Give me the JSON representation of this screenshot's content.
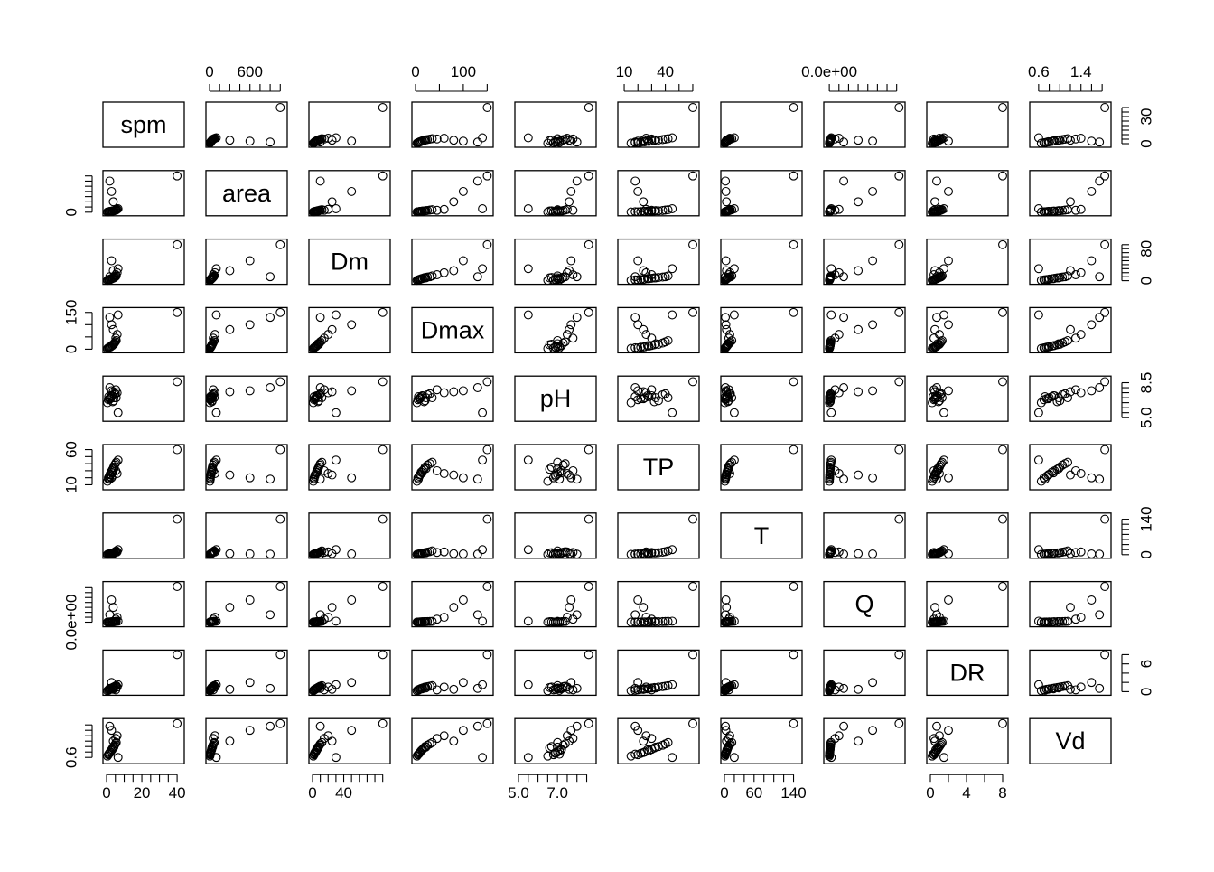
{
  "chart_data": {
    "type": "scatter",
    "kind": "pairs",
    "variables": [
      "spm",
      "area",
      "Dm",
      "Dmax",
      "pH",
      "TP",
      "T",
      "Q",
      "DR",
      "Vd"
    ],
    "axes": {
      "spm": {
        "range": [
          0,
          42
        ],
        "ticks": [
          0,
          5,
          10,
          15,
          20,
          25,
          30,
          35,
          40
        ],
        "labeled": {
          "top": [],
          "bottom": [
            "0",
            "20",
            "40"
          ],
          "left": [],
          "right": [
            "0",
            "30"
          ]
        },
        "label_values": {
          "bottom": [
            0,
            20,
            40
          ],
          "right": [
            0,
            30
          ]
        }
      },
      "area": {
        "range": [
          0,
          1100
        ],
        "ticks": [
          0,
          150,
          300,
          450,
          600,
          750,
          900,
          1050
        ],
        "labeled": {
          "top": [
            "0",
            "600"
          ],
          "left": [
            "0"
          ]
        },
        "label_values": {
          "top": [
            0,
            600
          ],
          "left": [
            0
          ]
        }
      },
      "Dm": {
        "range": [
          0,
          95
        ],
        "ticks": [
          0,
          10,
          20,
          30,
          40,
          50,
          60,
          70,
          80,
          90
        ],
        "labeled": {
          "bottom": [
            "0",
            "40"
          ],
          "right": [
            "0",
            "80"
          ]
        },
        "label_values": {
          "bottom": [
            0,
            40
          ],
          "right": [
            0,
            80
          ]
        }
      },
      "Dmax": {
        "range": [
          0,
          155
        ],
        "ticks": [
          0,
          50,
          100,
          150
        ],
        "labeled": {
          "top": [
            "0",
            "100"
          ],
          "left": [
            "0",
            "150"
          ]
        },
        "label_values": {
          "top": [
            0,
            100
          ],
          "left": [
            0,
            150
          ]
        }
      },
      "pH": {
        "range": [
          5.0,
          8.8
        ],
        "ticks": [
          5.0,
          5.5,
          6.0,
          6.5,
          7.0,
          7.5,
          8.0,
          8.5
        ],
        "labeled": {
          "bottom": [
            "5.0",
            "7.0"
          ],
          "right": [
            "5.0",
            "8.5"
          ]
        },
        "label_values": {
          "bottom": [
            5.0,
            7.0
          ],
          "right": [
            5.0,
            8.5
          ]
        }
      },
      "TP": {
        "range": [
          8,
          62
        ],
        "ticks": [
          10,
          20,
          30,
          40,
          50,
          60
        ],
        "labeled": {
          "top": [
            "10",
            "40"
          ],
          "left": [
            "10",
            "60"
          ]
        },
        "label_values": {
          "top": [
            10,
            40
          ],
          "left": [
            10,
            60
          ]
        }
      },
      "T": {
        "range": [
          0,
          150
        ],
        "ticks": [
          0,
          20,
          40,
          60,
          80,
          100,
          120,
          140
        ],
        "labeled": {
          "bottom": [
            "0",
            "60",
            "140"
          ],
          "right": [
            "0",
            "140"
          ]
        },
        "label_values": {
          "bottom": [
            0,
            60,
            140
          ],
          "right": [
            0,
            140
          ]
        }
      },
      "Q": {
        "range": [
          -400,
          15000
        ],
        "ticks": [
          0,
          2000,
          4000,
          6000,
          8000,
          10000,
          12000,
          14000
        ],
        "labeled": {
          "top": [
            "0.0e+00"
          ],
          "left": [
            "0.0e+00"
          ]
        },
        "label_values": {
          "top": [
            0
          ],
          "left": [
            0
          ]
        }
      },
      "DR": {
        "range": [
          0,
          8.2
        ],
        "ticks": [
          0,
          2,
          4,
          6,
          8
        ],
        "labeled": {
          "bottom": [
            "0",
            "4",
            "8"
          ],
          "right": [
            "0",
            "6"
          ]
        },
        "label_values": {
          "bottom": [
            0,
            4,
            8
          ],
          "right": [
            0,
            6
          ]
        }
      },
      "Vd": {
        "range": [
          0.5,
          1.9
        ],
        "ticks": [
          0.6,
          0.8,
          1.0,
          1.2,
          1.4,
          1.6,
          1.8
        ],
        "labeled": {
          "top": [
            "0.6",
            "1.4"
          ],
          "left": [
            "0.6"
          ]
        },
        "label_values": {
          "top": [
            0.6,
            1.4
          ],
          "left": [
            0.6
          ]
        }
      }
    },
    "observations": [
      {
        "spm": 1.0,
        "area": 10,
        "Dm": 2,
        "Dmax": 5,
        "pH": 6.8,
        "TP": 20,
        "T": 2,
        "Q": 50,
        "DR": 0.4,
        "Vd": 0.7
      },
      {
        "spm": 1.5,
        "area": 15,
        "Dm": 3,
        "Dmax": 8,
        "pH": 6.9,
        "TP": 22,
        "T": 3,
        "Q": 80,
        "DR": 0.5,
        "Vd": 0.75
      },
      {
        "spm": 2.0,
        "area": 20,
        "Dm": 4,
        "Dmax": 10,
        "pH": 7.0,
        "TP": 25,
        "T": 4,
        "Q": 100,
        "DR": 0.6,
        "Vd": 0.8
      },
      {
        "spm": 2.5,
        "area": 25,
        "Dm": 5,
        "Dmax": 12,
        "pH": 7.1,
        "TP": 28,
        "T": 5,
        "Q": 120,
        "DR": 0.7,
        "Vd": 0.85
      },
      {
        "spm": 3.0,
        "area": 30,
        "Dm": 6,
        "Dmax": 15,
        "pH": 7.2,
        "TP": 30,
        "T": 6,
        "Q": 150,
        "DR": 0.8,
        "Vd": 0.9
      },
      {
        "spm": 3.5,
        "area": 35,
        "Dm": 7,
        "Dmax": 18,
        "pH": 6.6,
        "TP": 32,
        "T": 7,
        "Q": 180,
        "DR": 0.9,
        "Vd": 0.95
      },
      {
        "spm": 4.0,
        "area": 40,
        "Dm": 8,
        "Dmax": 20,
        "pH": 6.7,
        "TP": 35,
        "T": 8,
        "Q": 200,
        "DR": 1.0,
        "Vd": 1.0
      },
      {
        "spm": 4.5,
        "area": 50,
        "Dm": 9,
        "Dmax": 25,
        "pH": 7.3,
        "TP": 38,
        "T": 10,
        "Q": 250,
        "DR": 1.1,
        "Vd": 1.05
      },
      {
        "spm": 5.0,
        "area": 60,
        "Dm": 10,
        "Dmax": 30,
        "pH": 7.4,
        "TP": 40,
        "T": 12,
        "Q": 300,
        "DR": 1.2,
        "Vd": 1.1
      },
      {
        "spm": 5.5,
        "area": 70,
        "Dm": 12,
        "Dmax": 35,
        "pH": 7.0,
        "TP": 42,
        "T": 15,
        "Q": 350,
        "DR": 1.3,
        "Vd": 1.15
      },
      {
        "spm": 0.5,
        "area": 5,
        "Dm": 1,
        "Dmax": 3,
        "pH": 6.5,
        "TP": 15,
        "T": 1,
        "Q": 20,
        "DR": 0.2,
        "Vd": 0.65
      },
      {
        "spm": 1.2,
        "area": 12,
        "Dm": 2,
        "Dmax": 6,
        "pH": 7.1,
        "TP": 18,
        "T": 2,
        "Q": 60,
        "DR": 0.3,
        "Vd": 0.72
      },
      {
        "spm": 2.2,
        "area": 22,
        "Dm": 3,
        "Dmax": 9,
        "pH": 6.9,
        "TP": 24,
        "T": 3,
        "Q": 90,
        "DR": 0.5,
        "Vd": 0.78
      },
      {
        "spm": 3.2,
        "area": 32,
        "Dm": 5,
        "Dmax": 14,
        "pH": 7.2,
        "TP": 27,
        "T": 5,
        "Q": 140,
        "DR": 0.6,
        "Vd": 0.88
      },
      {
        "spm": 4.2,
        "area": 45,
        "Dm": 7,
        "Dmax": 22,
        "pH": 7.0,
        "TP": 33,
        "T": 7,
        "Q": 220,
        "DR": 0.8,
        "Vd": 0.98
      },
      {
        "spm": 5.2,
        "area": 55,
        "Dm": 15,
        "Dmax": 45,
        "pH": 7.8,
        "TP": 30,
        "T": 9,
        "Q": 1200,
        "DR": 0.4,
        "Vd": 1.3
      },
      {
        "spm": 6.0,
        "area": 80,
        "Dm": 20,
        "Dmax": 60,
        "pH": 7.5,
        "TP": 26,
        "T": 11,
        "Q": 2000,
        "DR": 1.0,
        "Vd": 1.4
      },
      {
        "spm": 3.8,
        "area": 300,
        "Dm": 25,
        "Dmax": 80,
        "pH": 7.6,
        "TP": 24,
        "T": 4,
        "Q": 6000,
        "DR": 0.5,
        "Vd": 1.2
      },
      {
        "spm": 2.8,
        "area": 600,
        "Dm": 50,
        "Dmax": 100,
        "pH": 7.7,
        "TP": 20,
        "T": 3,
        "Q": 9000,
        "DR": 2.0,
        "Vd": 1.6
      },
      {
        "spm": 1.8,
        "area": 900,
        "Dm": 10,
        "Dmax": 130,
        "pH": 8.0,
        "TP": 18,
        "T": 2,
        "Q": 3000,
        "DR": 0.7,
        "Vd": 1.75
      },
      {
        "spm": 6.5,
        "area": 100,
        "Dm": 30,
        "Dmax": 140,
        "pH": 5.5,
        "TP": 45,
        "T": 20,
        "Q": 400,
        "DR": 1.5,
        "Vd": 0.6
      },
      {
        "spm": 40.0,
        "area": 1050,
        "Dm": 90,
        "Dmax": 150,
        "pH": 8.6,
        "TP": 60,
        "T": 140,
        "Q": 14500,
        "DR": 8.0,
        "Vd": 1.85
      }
    ]
  }
}
